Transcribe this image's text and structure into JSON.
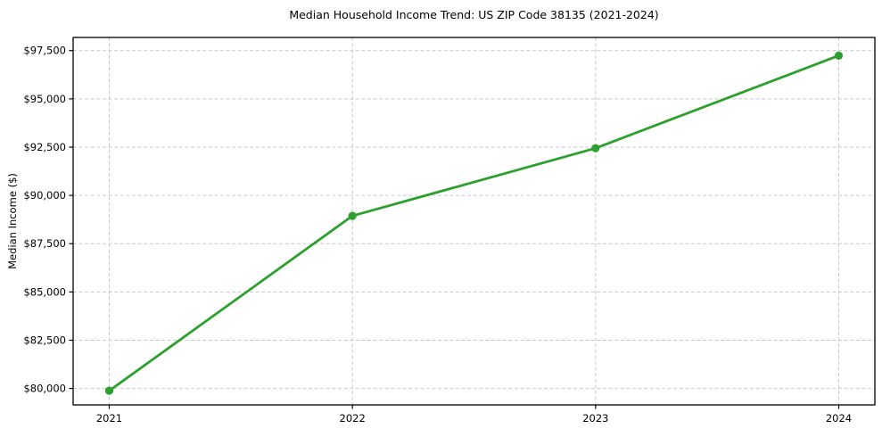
{
  "figure": {
    "background": "#ffffff"
  },
  "chart_data": {
    "type": "line",
    "title": "Median Household Income Trend: US ZIP Code 38135 (2021-2024)",
    "xlabel": "",
    "ylabel": "Median Income ($)",
    "categories": [
      "2021",
      "2022",
      "2023",
      "2024"
    ],
    "values": [
      79885,
      88940,
      92445,
      97240
    ],
    "y_ticks": [
      80000,
      82500,
      85000,
      87500,
      90000,
      92500,
      95000,
      97500
    ],
    "y_tick_labels": [
      "$80,000",
      "$82,500",
      "$85,000",
      "$87,500",
      "$90,000",
      "$92,500",
      "$95,000",
      "$97,500"
    ],
    "ylim": [
      79150,
      98180
    ],
    "grid": true,
    "grid_linestyle": "dashed",
    "legend_position": "none",
    "marker": "circle",
    "colors": {
      "line": "#2ca02c",
      "marker": "#2ca02c",
      "grid": "#c9c9c9",
      "axis": "#000000",
      "text": "#000000",
      "background": "#ffffff"
    }
  }
}
